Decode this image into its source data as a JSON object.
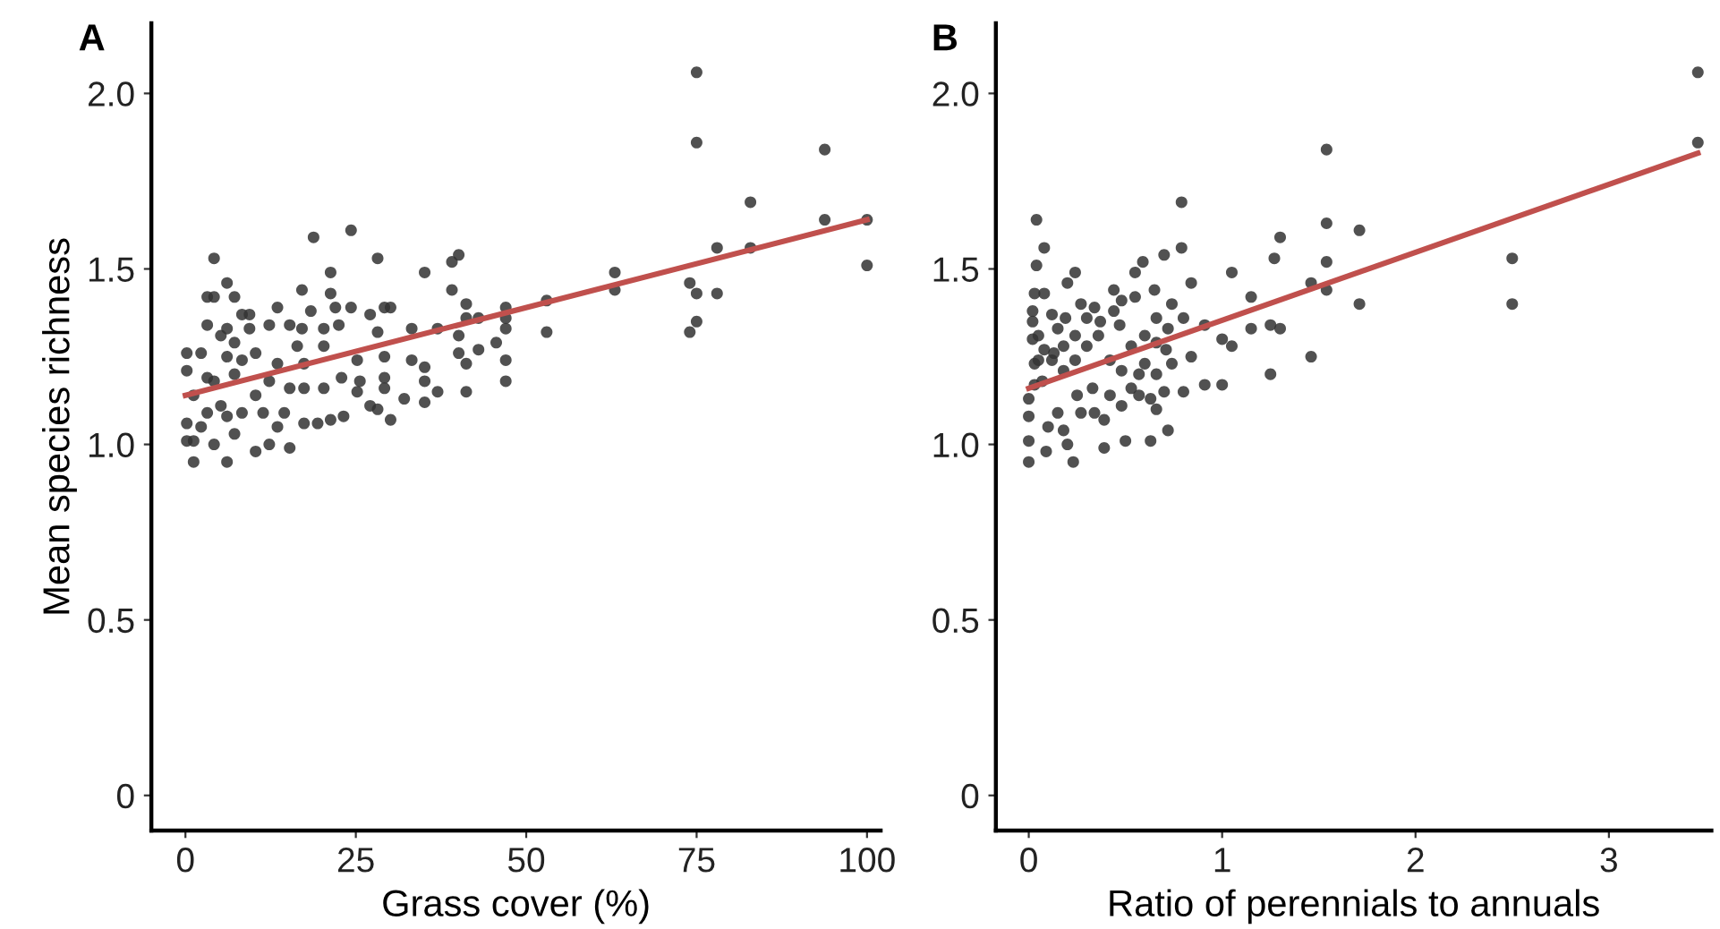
{
  "chart_data": [
    {
      "type": "scatter",
      "xlabel": "Grass cover (%)",
      "ylabel": "Mean species richness",
      "annotations": [
        "A"
      ],
      "grid": false,
      "legend": false,
      "xlim": [
        -5,
        102
      ],
      "xticks": [
        0,
        25,
        50,
        75,
        100
      ],
      "ylim": [
        -0.1,
        2.2
      ],
      "yticks": [
        0,
        {
          "value": 0.5,
          "label": "0.5"
        },
        {
          "value": 1.0,
          "label": "1.0"
        },
        {
          "value": 1.5,
          "label": "1.5"
        },
        {
          "value": 2.0,
          "label": "2.0"
        }
      ],
      "series": [
        {
          "marker": "circle",
          "color": "#333333",
          "x": [
            75,
            75,
            93.8,
            82.9,
            93.8,
            78,
            82.9,
            74,
            75,
            78,
            75,
            74,
            100,
            100,
            63,
            63,
            53,
            53,
            47,
            47,
            47,
            47,
            47,
            45.6,
            43,
            43,
            41.2,
            41.2,
            41.2,
            41.2,
            40.1,
            39.1,
            39.1,
            40.1,
            40.1,
            35.1,
            35.1,
            35.1,
            35.1,
            33.2,
            33.2,
            37,
            37,
            32.1,
            30.1,
            29.2,
            30.1,
            29.2,
            29.2,
            29.2,
            28.2,
            28.2,
            27.1,
            27.1,
            28.2,
            24.3,
            24.3,
            25.2,
            25.2,
            23.2,
            21.3,
            21.3,
            22,
            20.3,
            20.3,
            20.3,
            21.3,
            18.8,
            17.1,
            17.1,
            18.4,
            17.4,
            17.4,
            19.4,
            17.4,
            15.3,
            15.3,
            15.3,
            13.5,
            13.5,
            13.5,
            12.3,
            12.3,
            12.3,
            10.3,
            10.3,
            10.3,
            9.4,
            9.4,
            8.3,
            8.3,
            8.3,
            7.2,
            7.2,
            7.2,
            7.2,
            6.1,
            6.1,
            6.1,
            6.1,
            6.1,
            4.2,
            4.2,
            4.2,
            4.2,
            3.2,
            3.2,
            3.2,
            3.2,
            2.3,
            2.3,
            1.2,
            0.2,
            0.2,
            0.2,
            0.2,
            1.2,
            1.2,
            5.2,
            5.2,
            11.4,
            14.5,
            16.4,
            22.9,
            25.6,
            22.5
          ],
          "values": [
            2.06,
            1.86,
            1.84,
            1.69,
            1.64,
            1.56,
            1.56,
            1.46,
            1.43,
            1.43,
            1.35,
            1.32,
            1.64,
            1.51,
            1.49,
            1.44,
            1.41,
            1.32,
            1.39,
            1.36,
            1.33,
            1.24,
            1.18,
            1.29,
            1.36,
            1.27,
            1.4,
            1.36,
            1.23,
            1.15,
            1.54,
            1.52,
            1.44,
            1.31,
            1.26,
            1.49,
            1.22,
            1.18,
            1.12,
            1.24,
            1.33,
            1.33,
            1.15,
            1.13,
            1.07,
            1.39,
            1.39,
            1.25,
            1.19,
            1.16,
            1.53,
            1.32,
            1.37,
            1.11,
            1.1,
            1.61,
            1.39,
            1.24,
            1.15,
            1.08,
            1.49,
            1.43,
            1.39,
            1.33,
            1.28,
            1.16,
            1.07,
            1.59,
            1.44,
            1.33,
            1.38,
            1.23,
            1.16,
            1.06,
            1.06,
            1.34,
            1.16,
            0.99,
            1.39,
            1.23,
            1.05,
            1.34,
            1.18,
            1.0,
            1.26,
            1.14,
            0.98,
            1.37,
            1.33,
            1.37,
            1.24,
            1.09,
            1.42,
            1.29,
            1.2,
            1.03,
            1.46,
            1.33,
            1.25,
            1.08,
            0.95,
            1.53,
            1.42,
            1.18,
            1.0,
            1.42,
            1.34,
            1.19,
            1.09,
            1.26,
            1.05,
            0.95,
            1.26,
            1.21,
            1.06,
            1.01,
            1.14,
            1.01,
            1.31,
            1.11,
            1.09,
            1.09,
            1.28,
            1.19,
            1.18,
            1.34
          ]
        },
        {
          "type": "line",
          "color": "#c0504d",
          "x": [
            0,
            100
          ],
          "values": [
            1.14,
            1.64
          ]
        }
      ]
    },
    {
      "type": "scatter",
      "xlabel": "Ratio of perennials to annuals",
      "annotations": [
        "B"
      ],
      "grid": false,
      "legend": false,
      "xlim": [
        -0.17,
        3.53
      ],
      "xticks": [
        0,
        1,
        2,
        3
      ],
      "ylim": [
        -0.1,
        2.2
      ],
      "yticks": [
        0,
        {
          "value": 0.5,
          "label": "0.5"
        },
        {
          "value": 1.0,
          "label": "1.0"
        },
        {
          "value": 1.5,
          "label": "1.5"
        },
        {
          "value": 2.0,
          "label": "2.0"
        }
      ],
      "series": [
        {
          "marker": "circle",
          "color": "#333333",
          "x": [
            3.46,
            3.46,
            1.54,
            2.5,
            2.5,
            1.54,
            1.71,
            1.54,
            1.54,
            1.71,
            1.46,
            1.46,
            1.3,
            1.27,
            1.15,
            1.15,
            1.25,
            1.3,
            1.25,
            1.05,
            1.05,
            1.0,
            1.0,
            0.91,
            0.91,
            0.79,
            0.79,
            0.7,
            0.59,
            0.84,
            0.84,
            0.8,
            0.8,
            0.74,
            0.74,
            0.72,
            0.63,
            0.66,
            0.5,
            0.39,
            0.55,
            0.55,
            0.44,
            0.48,
            0.65,
            0.66,
            0.6,
            0.57,
            0.48,
            0.39,
            0.34,
            0.3,
            0.27,
            0.24,
            0.2,
            0.23,
            0.2,
            0.09,
            0.0,
            0.0,
            0.0,
            0.0,
            0.04,
            0.08,
            0.04,
            0.03,
            0.08,
            0.02,
            0.02,
            0.02,
            0.03,
            0.03,
            0.12,
            0.15,
            0.19,
            0.13,
            0.18,
            0.24,
            0.3,
            0.36,
            0.42,
            0.48,
            0.53,
            0.42,
            0.33,
            0.25,
            0.15,
            0.1,
            0.18,
            0.07,
            0.12,
            0.08,
            0.27,
            0.34,
            0.47,
            0.44,
            0.37,
            0.57,
            0.63,
            0.7,
            0.66,
            0.6,
            0.71,
            0.66,
            0.72,
            0.53,
            0.24,
            0.18,
            0.05,
            0.05
          ],
          "values": [
            2.06,
            1.86,
            1.84,
            1.53,
            1.4,
            1.63,
            1.61,
            1.52,
            1.44,
            1.4,
            1.46,
            1.25,
            1.59,
            1.53,
            1.42,
            1.33,
            1.34,
            1.33,
            1.2,
            1.49,
            1.28,
            1.3,
            1.17,
            1.17,
            1.34,
            1.69,
            1.56,
            1.54,
            1.52,
            1.46,
            1.25,
            1.36,
            1.15,
            1.4,
            1.23,
            1.04,
            1.01,
            1.1,
            1.01,
            0.99,
            1.49,
            1.42,
            1.44,
            1.41,
            1.44,
            1.29,
            1.31,
            1.2,
            1.11,
            1.07,
            1.39,
            1.36,
            1.4,
            1.49,
            1.46,
            0.95,
            1.0,
            0.98,
            0.95,
            1.01,
            1.08,
            1.13,
            1.64,
            1.56,
            1.51,
            1.43,
            1.43,
            1.38,
            1.35,
            1.3,
            1.23,
            1.17,
            1.37,
            1.33,
            1.36,
            1.26,
            1.21,
            1.24,
            1.28,
            1.31,
            1.24,
            1.21,
            1.16,
            1.14,
            1.16,
            1.14,
            1.09,
            1.05,
            1.04,
            1.18,
            1.24,
            1.27,
            1.09,
            1.09,
            1.34,
            1.38,
            1.35,
            1.14,
            1.13,
            1.15,
            1.2,
            1.23,
            1.27,
            1.36,
            1.33,
            1.28,
            1.31,
            1.28,
            1.24,
            1.31
          ]
        },
        {
          "type": "line",
          "color": "#c0504d",
          "x": [
            0,
            3.46
          ],
          "values": [
            1.16,
            1.83
          ]
        }
      ]
    }
  ]
}
